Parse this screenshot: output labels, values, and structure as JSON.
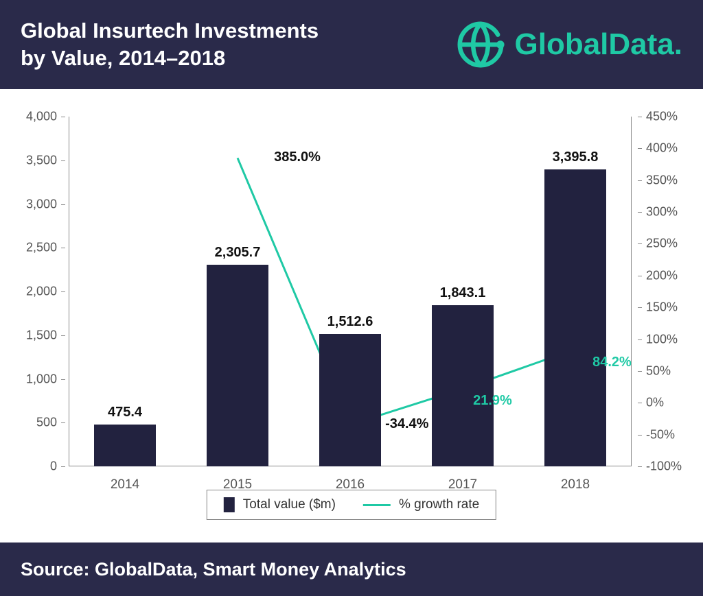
{
  "header": {
    "title_line1": "Global Insurtech Investments",
    "title_line2": "by Value, 2014–2018",
    "logo_text": "GlobalData.",
    "logo_color": "#1fc9a5"
  },
  "chart": {
    "type": "bar+line",
    "background_color": "#ffffff",
    "bar_color": "#22223f",
    "line_color": "#1fc9a5",
    "line_width": 3,
    "bar_width_ratio": 0.55,
    "categories": [
      "2014",
      "2015",
      "2016",
      "2017",
      "2018"
    ],
    "bar_values": [
      475.4,
      2305.7,
      1512.6,
      1843.1,
      3395.8
    ],
    "bar_value_labels": [
      "475.4",
      "2,305.7",
      "1,512.6",
      "1,843.1",
      "3,395.8"
    ],
    "growth_values": [
      null,
      385.0,
      -34.4,
      21.9,
      84.2
    ],
    "growth_labels": [
      null,
      "385.0%",
      "-34.4%",
      "21.9%",
      "84.2%"
    ],
    "growth_label_colors": [
      null,
      "#111111",
      "#111111",
      "#1fc9a5",
      "#1fc9a5"
    ],
    "y_left": {
      "min": 0,
      "max": 4000,
      "step": 500,
      "tick_labels": [
        "0",
        "500",
        "1,000",
        "1,500",
        "2,000",
        "2,500",
        "3,000",
        "3,500",
        "4,000"
      ]
    },
    "y_right": {
      "min": -100,
      "max": 450,
      "step": 50,
      "tick_labels": [
        "-100%",
        "-50%",
        "0%",
        "50%",
        "100%",
        "150%",
        "200%",
        "250%",
        "300%",
        "350%",
        "400%",
        "450%"
      ]
    },
    "legend": {
      "bar_label": "Total value ($m)",
      "line_label": "% growth rate"
    },
    "label_fontsize": 19,
    "value_fontsize": 20,
    "tick_fontsize": 18
  },
  "footer": {
    "text": "Source: GlobalData, Smart Money Analytics",
    "background": "#2a2a4a",
    "color": "#ffffff"
  }
}
